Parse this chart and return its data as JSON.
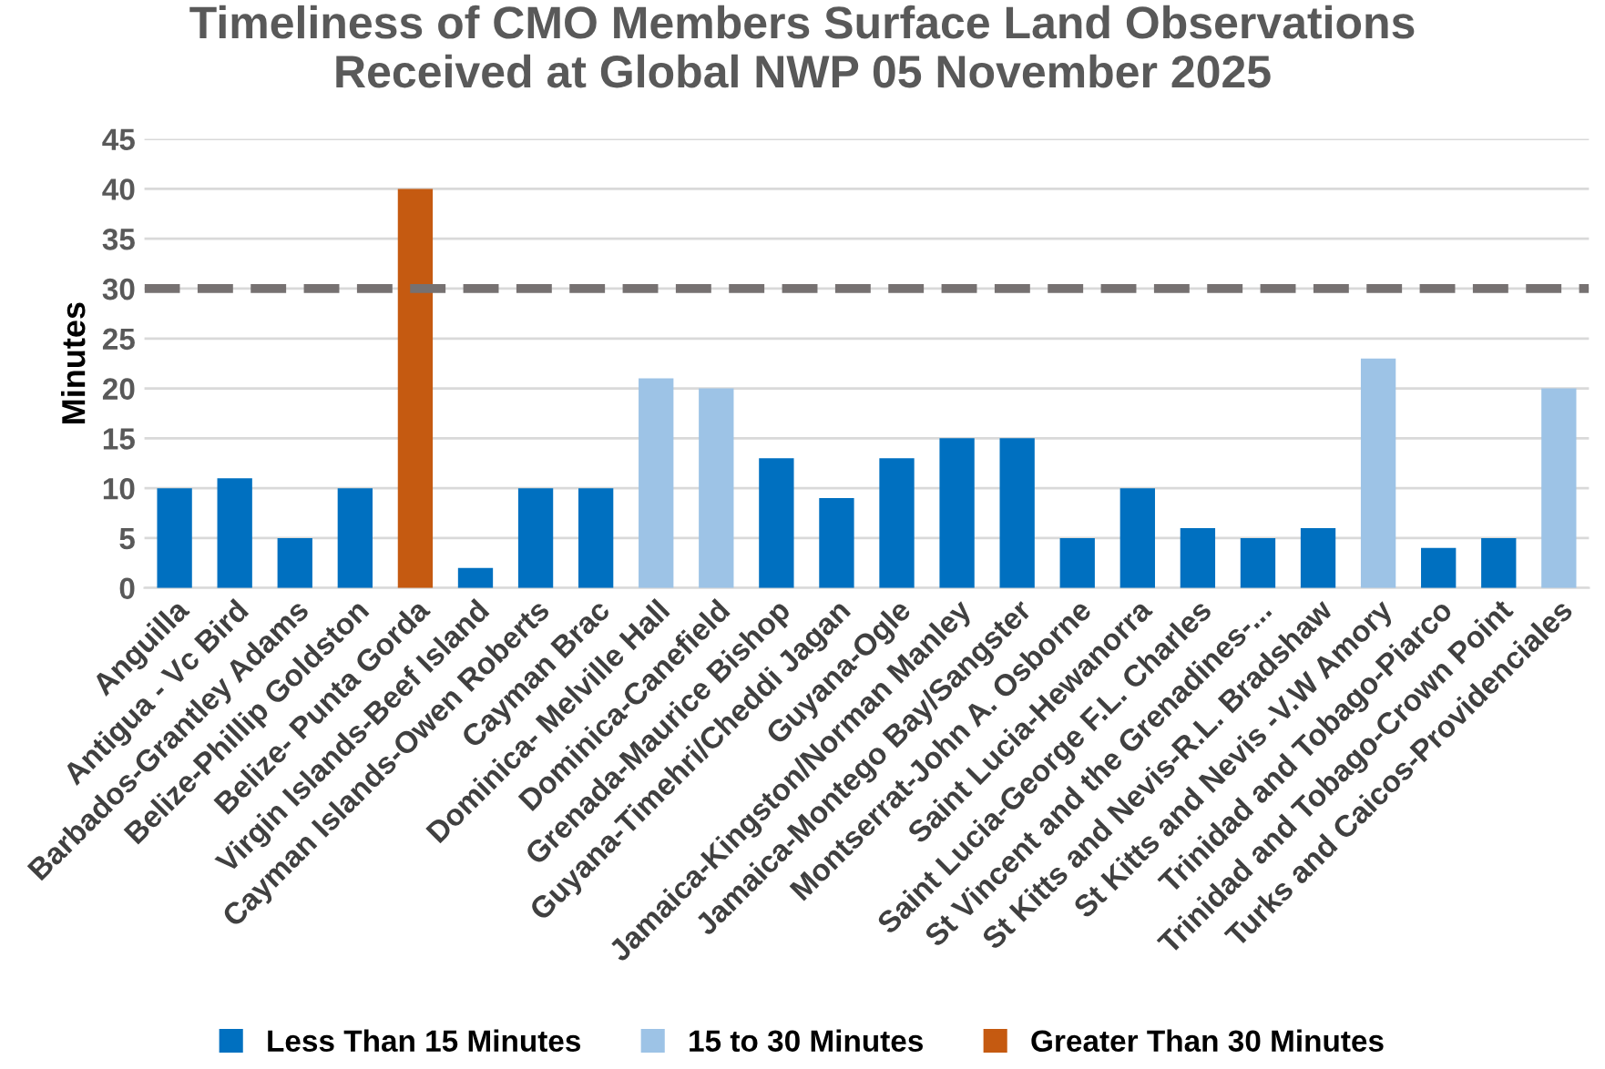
{
  "chart_data": {
    "type": "bar",
    "title": "Timeliness of CMO Members Surface Land Observations\nReceived at Global NWP 05 November 2025",
    "ylabel": "Minutes",
    "categories": [
      "Anguilla",
      "Antigua - Vc Bird",
      "Barbados-Grantley Adams",
      "Belize-Phillip Goldston",
      "Belize- Punta Gorda",
      "Virgin Islands-Beef Island",
      "Cayman Islands-Owen Roberts",
      "Cayman Brac",
      "Dominica- Melville Hall",
      "Dominica-Canefield",
      "Grenada-Maurice Bishop",
      "Guyana-Timehri/Cheddi Jagan",
      "Guyana-Ogle",
      "Jamaica-Kingston/Norman Manley",
      "Jamaica-Montego Bay/Sangster",
      "Montserrat-John A. Osborne",
      "Saint Lucia-Hewanorra",
      "Saint Lucia-George F.L. Charles",
      "St Vincent and the Grenadines-...",
      "St Kitts and Nevis-R.L. Bradshaw",
      "St Kitts and Nevis -V.W Amory",
      "Trinidad and Tobago-Piarco",
      "Trinidad and Tobago-Crown Point",
      "Turks and Caicos-Providenciales"
    ],
    "series": [
      {
        "name": "Less Than 15 Minutes",
        "color": "#0070c0",
        "values": [
          10,
          11,
          5,
          10,
          null,
          2,
          10,
          10,
          null,
          null,
          13,
          9,
          13,
          15,
          15,
          5,
          10,
          6,
          5,
          6,
          null,
          4,
          5,
          null
        ]
      },
      {
        "name": "15 to 30 Minutes",
        "color": "#9dc3e6",
        "values": [
          null,
          null,
          null,
          null,
          null,
          null,
          null,
          null,
          21,
          20,
          null,
          null,
          null,
          null,
          null,
          null,
          null,
          null,
          null,
          null,
          23,
          null,
          null,
          20
        ]
      },
      {
        "name": "Greater Than 30 Minutes",
        "color": "#c55a11",
        "values": [
          null,
          null,
          null,
          null,
          40,
          null,
          null,
          null,
          null,
          null,
          null,
          null,
          null,
          null,
          null,
          null,
          null,
          null,
          null,
          null,
          null,
          null,
          null,
          null
        ]
      }
    ],
    "ylim": [
      0,
      45
    ],
    "yticks": [
      0,
      5,
      10,
      15,
      20,
      25,
      30,
      35,
      40,
      45
    ],
    "grid": "y",
    "legend": "bottom",
    "ref_lines": [
      {
        "axis": "y",
        "value": 30,
        "color": "#767171",
        "line_style": "dashed"
      }
    ]
  }
}
